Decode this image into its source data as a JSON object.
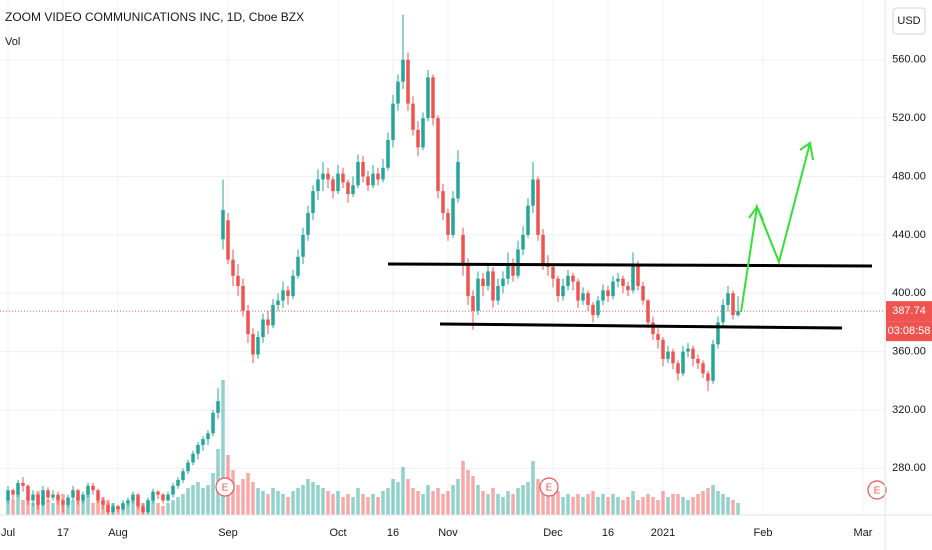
{
  "chart_data": {
    "type": "candlestick",
    "title": "ZOOM VIDEO COMMUNICATIONS INC, 1D, Cboe BZX",
    "volume_label": "Vol",
    "currency": "USD",
    "countdown": "03:08:58",
    "earnings_markers": [
      "E",
      "E",
      "E"
    ],
    "up_color": "#26a69a",
    "down_color": "#ef5350",
    "grid": true,
    "xlim": [
      -1.6,
      175.4
    ],
    "ylim": [
      248,
      601
    ],
    "yticks": [
      {
        "value": 280,
        "label": "280.00"
      },
      {
        "value": 320,
        "label": "320.00"
      },
      {
        "value": 360,
        "label": "360.00"
      },
      {
        "value": 400,
        "label": "400.00"
      },
      {
        "value": 440,
        "label": "440.00"
      },
      {
        "value": 480,
        "label": "480.00"
      },
      {
        "value": 520,
        "label": "520.00"
      },
      {
        "value": 560,
        "label": "560.00"
      }
    ],
    "xticks": [
      {
        "value": 0,
        "label": "Jul"
      },
      {
        "value": 11,
        "label": "17"
      },
      {
        "value": 22,
        "label": "Aug"
      },
      {
        "value": 44,
        "label": "Sep"
      },
      {
        "value": 66,
        "label": "Oct"
      },
      {
        "value": 77,
        "label": "16"
      },
      {
        "value": 88,
        "label": "Nov"
      },
      {
        "value": 109,
        "label": "Dec"
      },
      {
        "value": 120,
        "label": "16"
      },
      {
        "value": 131,
        "label": "2021"
      },
      {
        "value": 151,
        "label": "Feb"
      },
      {
        "value": 171,
        "label": "Mar"
      }
    ],
    "ohlc": [
      [
        258,
        268,
        256,
        265
      ],
      [
        265,
        266,
        258,
        262
      ],
      [
        262,
        272,
        260,
        270
      ],
      [
        270,
        274,
        264,
        268
      ],
      [
        268,
        269,
        255,
        258
      ],
      [
        258,
        265,
        254,
        262
      ],
      [
        262,
        263,
        252,
        255
      ],
      [
        255,
        268,
        254,
        265
      ],
      [
        265,
        267,
        257,
        260
      ],
      [
        260,
        265,
        258,
        262
      ],
      [
        262,
        264,
        255,
        258
      ],
      [
        258,
        259,
        250,
        255
      ],
      [
        255,
        262,
        253,
        260
      ],
      [
        260,
        268,
        258,
        265
      ],
      [
        265,
        266,
        255,
        258
      ],
      [
        258,
        264,
        256,
        262
      ],
      [
        262,
        270,
        260,
        268
      ],
      [
        268,
        270,
        262,
        265
      ],
      [
        265,
        266,
        256,
        258
      ],
      [
        258,
        260,
        252,
        255
      ],
      [
        255,
        257,
        248,
        250
      ],
      [
        250,
        256,
        248,
        254
      ],
      [
        254,
        255,
        250,
        252
      ],
      [
        252,
        258,
        251,
        256
      ],
      [
        256,
        260,
        254,
        258
      ],
      [
        258,
        264,
        256,
        262
      ],
      [
        262,
        263,
        252,
        254
      ],
      [
        254,
        256,
        248,
        250
      ],
      [
        250,
        260,
        249,
        258
      ],
      [
        258,
        266,
        256,
        264
      ],
      [
        264,
        265,
        259,
        262
      ],
      [
        262,
        263,
        256,
        258
      ],
      [
        258,
        264,
        257,
        262
      ],
      [
        262,
        270,
        260,
        268
      ],
      [
        268,
        274,
        266,
        272
      ],
      [
        272,
        280,
        270,
        278
      ],
      [
        278,
        286,
        276,
        284
      ],
      [
        284,
        292,
        282,
        290
      ],
      [
        290,
        298,
        286,
        296
      ],
      [
        296,
        302,
        292,
        300
      ],
      [
        300,
        306,
        296,
        304
      ],
      [
        304,
        320,
        302,
        318
      ],
      [
        318,
        335,
        314,
        326
      ],
      [
        437,
        478,
        430,
        457
      ],
      [
        450,
        455,
        420,
        423
      ],
      [
        423,
        430,
        405,
        412
      ],
      [
        412,
        420,
        398,
        405
      ],
      [
        405,
        410,
        384,
        388
      ],
      [
        388,
        392,
        366,
        372
      ],
      [
        372,
        376,
        352,
        358
      ],
      [
        358,
        374,
        355,
        370
      ],
      [
        370,
        386,
        366,
        382
      ],
      [
        382,
        388,
        372,
        378
      ],
      [
        378,
        396,
        376,
        392
      ],
      [
        392,
        400,
        388,
        395
      ],
      [
        395,
        408,
        390,
        402
      ],
      [
        402,
        405,
        392,
        398
      ],
      [
        398,
        416,
        396,
        412
      ],
      [
        412,
        430,
        410,
        425
      ],
      [
        425,
        445,
        420,
        440
      ],
      [
        440,
        460,
        436,
        455
      ],
      [
        455,
        474,
        450,
        470
      ],
      [
        470,
        485,
        464,
        478
      ],
      [
        478,
        490,
        470,
        482
      ],
      [
        482,
        486,
        472,
        478
      ],
      [
        478,
        480,
        465,
        470
      ],
      [
        470,
        488,
        468,
        482
      ],
      [
        482,
        486,
        472,
        476
      ],
      [
        476,
        478,
        462,
        468
      ],
      [
        468,
        480,
        466,
        474
      ],
      [
        474,
        495,
        472,
        490
      ],
      [
        490,
        494,
        476,
        480
      ],
      [
        480,
        484,
        470,
        474
      ],
      [
        474,
        488,
        472,
        482
      ],
      [
        482,
        486,
        474,
        478
      ],
      [
        478,
        492,
        476,
        486
      ],
      [
        486,
        510,
        484,
        505
      ],
      [
        505,
        536,
        500,
        530
      ],
      [
        530,
        550,
        525,
        545
      ],
      [
        545,
        591,
        540,
        560
      ],
      [
        560,
        565,
        525,
        530
      ],
      [
        530,
        535,
        508,
        512
      ],
      [
        512,
        518,
        494,
        500
      ],
      [
        500,
        524,
        498,
        520
      ],
      [
        520,
        553,
        518,
        548
      ],
      [
        548,
        550,
        515,
        520
      ],
      [
        520,
        522,
        465,
        470
      ],
      [
        470,
        475,
        450,
        455
      ],
      [
        455,
        458,
        436,
        440
      ],
      [
        440,
        470,
        438,
        465
      ],
      [
        465,
        498,
        462,
        490
      ],
      [
        440,
        445,
        412,
        420
      ],
      [
        420,
        424,
        392,
        398
      ],
      [
        398,
        402,
        375,
        388
      ],
      [
        388,
        415,
        385,
        410
      ],
      [
        410,
        414,
        398,
        405
      ],
      [
        405,
        420,
        402,
        415
      ],
      [
        415,
        418,
        390,
        395
      ],
      [
        395,
        410,
        392,
        405
      ],
      [
        405,
        415,
        400,
        410
      ],
      [
        410,
        428,
        406,
        420
      ],
      [
        420,
        424,
        408,
        412
      ],
      [
        412,
        436,
        410,
        430
      ],
      [
        430,
        446,
        426,
        440
      ],
      [
        440,
        465,
        438,
        460
      ],
      [
        460,
        490,
        455,
        478
      ],
      [
        478,
        480,
        436,
        440
      ],
      [
        440,
        444,
        416,
        420
      ],
      [
        420,
        426,
        412,
        418
      ],
      [
        418,
        420,
        404,
        410
      ],
      [
        410,
        412,
        394,
        398
      ],
      [
        398,
        410,
        395,
        405
      ],
      [
        405,
        416,
        402,
        412
      ],
      [
        412,
        414,
        402,
        408
      ],
      [
        408,
        410,
        390,
        395
      ],
      [
        395,
        404,
        392,
        400
      ],
      [
        400,
        402,
        388,
        392
      ],
      [
        392,
        394,
        380,
        385
      ],
      [
        385,
        398,
        383,
        395
      ],
      [
        395,
        406,
        392,
        402
      ],
      [
        402,
        405,
        394,
        398
      ],
      [
        398,
        412,
        396,
        408
      ],
      [
        408,
        414,
        404,
        410
      ],
      [
        410,
        412,
        400,
        405
      ],
      [
        405,
        408,
        398,
        402
      ],
      [
        402,
        428,
        400,
        420
      ],
      [
        420,
        422,
        402,
        405
      ],
      [
        405,
        408,
        392,
        395
      ],
      [
        395,
        396,
        376,
        380
      ],
      [
        380,
        384,
        368,
        372
      ],
      [
        372,
        376,
        362,
        368
      ],
      [
        368,
        370,
        350,
        355
      ],
      [
        355,
        364,
        352,
        360
      ],
      [
        360,
        362,
        348,
        352
      ],
      [
        352,
        354,
        340,
        345
      ],
      [
        345,
        364,
        343,
        360
      ],
      [
        360,
        366,
        356,
        362
      ],
      [
        362,
        364,
        350,
        355
      ],
      [
        355,
        358,
        348,
        352
      ],
      [
        352,
        354,
        342,
        345
      ],
      [
        345,
        347,
        333,
        340
      ],
      [
        340,
        368,
        338,
        365
      ],
      [
        365,
        384,
        362,
        380
      ],
      [
        380,
        396,
        376,
        392
      ],
      [
        392,
        405,
        388,
        400
      ],
      [
        400,
        402,
        382,
        385
      ],
      [
        385,
        398,
        384,
        387.74
      ]
    ],
    "volume": [
      6,
      5,
      7,
      5,
      6,
      4,
      8,
      6,
      5,
      4,
      5,
      7,
      4,
      5,
      6,
      5,
      7,
      4,
      5,
      6,
      5,
      4,
      3,
      4,
      4,
      5,
      3,
      4,
      5,
      6,
      4,
      3,
      4,
      5,
      6,
      7,
      9,
      10,
      11,
      9,
      10,
      14,
      22,
      45,
      20,
      15,
      10,
      12,
      14,
      11,
      9,
      8,
      7,
      9,
      8,
      7,
      6,
      8,
      9,
      10,
      12,
      11,
      10,
      9,
      8,
      7,
      8,
      6,
      7,
      6,
      9,
      7,
      6,
      7,
      6,
      8,
      9,
      12,
      11,
      16,
      12,
      9,
      8,
      7,
      10,
      8,
      9,
      7,
      8,
      10,
      12,
      18,
      15,
      13,
      10,
      8,
      7,
      9,
      7,
      6,
      8,
      7,
      9,
      10,
      11,
      18,
      12,
      9,
      8,
      7,
      8,
      6,
      7,
      6,
      7,
      6,
      7,
      8,
      6,
      7,
      6,
      7,
      6,
      5,
      6,
      8,
      5,
      6,
      7,
      6,
      5,
      8,
      6,
      7,
      7,
      6,
      5,
      6,
      7,
      8,
      9,
      10,
      8,
      7,
      6,
      5,
      4
    ]
  }
}
